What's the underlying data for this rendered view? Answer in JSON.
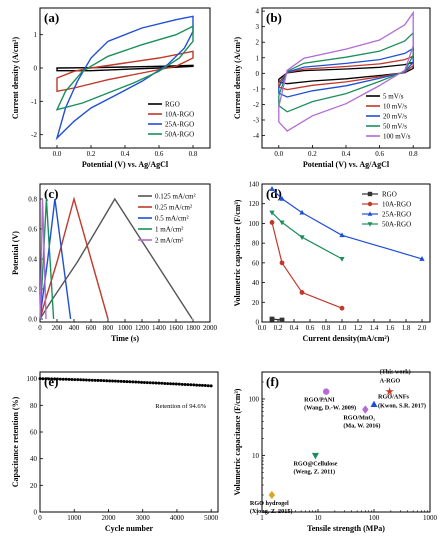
{
  "chart_data": [
    {
      "panel": "(a)",
      "type": "line",
      "xlabel": "Potential (V) vs. Ag/AgCl",
      "ylabel": "Current density (A/cm³)",
      "xlim": [
        -0.1,
        0.9
      ],
      "ylim": [
        -2.4,
        1.8
      ],
      "xticks": [
        "0.0",
        "0.2",
        "0.4",
        "0.6",
        "0.8"
      ],
      "yticks": [
        "-2",
        "-1",
        "0",
        "1"
      ],
      "legend_position": "bottom-right",
      "series": [
        {
          "name": "RGO",
          "color": "#000000",
          "loop": {
            "upper": [
              [
                0,
                0.0
              ],
              [
                0.2,
                0.01
              ],
              [
                0.4,
                0.03
              ],
              [
                0.6,
                0.05
              ],
              [
                0.8,
                0.08
              ]
            ],
            "lower": [
              [
                0.8,
                0.05
              ],
              [
                0.6,
                0.0
              ],
              [
                0.4,
                -0.04
              ],
              [
                0.2,
                -0.08
              ],
              [
                0,
                -0.08
              ]
            ]
          }
        },
        {
          "name": "10A-RGO",
          "color": "#c0392b",
          "loop": {
            "upper": [
              [
                0,
                -0.3
              ],
              [
                0.1,
                -0.1
              ],
              [
                0.2,
                0.0
              ],
              [
                0.4,
                0.15
              ],
              [
                0.6,
                0.3
              ],
              [
                0.8,
                0.5
              ]
            ],
            "lower": [
              [
                0.8,
                0.3
              ],
              [
                0.7,
                0.05
              ],
              [
                0.5,
                -0.15
              ],
              [
                0.3,
                -0.35
              ],
              [
                0.1,
                -0.6
              ],
              [
                0,
                -0.7
              ]
            ]
          }
        },
        {
          "name": "25A-RGO",
          "color": "#1f4fd6",
          "loop": {
            "upper": [
              [
                0,
                -2.1
              ],
              [
                0.05,
                -1.2
              ],
              [
                0.12,
                -0.4
              ],
              [
                0.2,
                0.3
              ],
              [
                0.3,
                0.8
              ],
              [
                0.5,
                1.2
              ],
              [
                0.7,
                1.45
              ],
              [
                0.8,
                1.55
              ]
            ],
            "lower": [
              [
                0.8,
                1.1
              ],
              [
                0.75,
                0.6
              ],
              [
                0.65,
                0.1
              ],
              [
                0.5,
                -0.4
              ],
              [
                0.35,
                -0.8
              ],
              [
                0.2,
                -1.2
              ],
              [
                0.1,
                -1.6
              ],
              [
                0,
                -2.1
              ]
            ]
          }
        },
        {
          "name": "50A-RGO",
          "color": "#1b8f5a",
          "loop": {
            "upper": [
              [
                0,
                -1.25
              ],
              [
                0.05,
                -0.7
              ],
              [
                0.15,
                -0.1
              ],
              [
                0.3,
                0.35
              ],
              [
                0.5,
                0.7
              ],
              [
                0.7,
                1.0
              ],
              [
                0.8,
                1.25
              ]
            ],
            "lower": [
              [
                0.8,
                0.8
              ],
              [
                0.72,
                0.3
              ],
              [
                0.6,
                -0.1
              ],
              [
                0.45,
                -0.45
              ],
              [
                0.3,
                -0.75
              ],
              [
                0.15,
                -1.05
              ],
              [
                0,
                -1.25
              ]
            ]
          }
        }
      ]
    },
    {
      "panel": "(b)",
      "type": "line",
      "xlabel": "Potential (V) vs. Ag/AgCl",
      "ylabel": "Current density (A/cm³)",
      "xlim": [
        -0.1,
        0.9
      ],
      "ylim": [
        -4.8,
        4.2
      ],
      "xticks": [
        "0.0",
        "0.2",
        "0.4",
        "0.6",
        "0.8"
      ],
      "yticks": [
        "-4",
        "-3",
        "-2",
        "-1",
        "0",
        "1",
        "2",
        "3",
        "4"
      ],
      "legend_position": "bottom-right",
      "series": [
        {
          "name": "5 mV/s",
          "color": "#000000",
          "amplitude": 0.7
        },
        {
          "name": "10 mV/s",
          "color": "#c0392b",
          "amplitude": 1.1
        },
        {
          "name": "20 mV/s",
          "color": "#1f4fd6",
          "amplitude": 1.6
        },
        {
          "name": "50 mV/s",
          "color": "#1b8f5a",
          "amplitude": 2.6
        },
        {
          "name": "100 mV/s",
          "color": "#b36ad6",
          "amplitude": 3.9
        }
      ]
    },
    {
      "panel": "(c)",
      "type": "line",
      "xlabel": "Time (s)",
      "ylabel": "Potential (V)",
      "xlim": [
        0,
        2000
      ],
      "ylim": [
        -0.02,
        0.9
      ],
      "xticks": [
        "0",
        "200",
        "400",
        "600",
        "800",
        "1000",
        "1200",
        "1400",
        "1600",
        "1800",
        "2000"
      ],
      "yticks": [
        "0.0",
        "0.2",
        "0.4",
        "0.6",
        "0.8"
      ],
      "legend_position": "top-right",
      "series": [
        {
          "name": "0.125 mA/cm²",
          "color": "#555555",
          "peak_time": 880,
          "end_time": 1790
        },
        {
          "name": "0.25 mA/cm²",
          "color": "#c0392b",
          "peak_time": 400,
          "end_time": 800
        },
        {
          "name": "0.5 mA/cm²",
          "color": "#1f4fd6",
          "peak_time": 175,
          "end_time": 360
        },
        {
          "name": "1 mA/cm²",
          "color": "#1b8f5a",
          "peak_time": 75,
          "end_time": 160
        },
        {
          "name": "2 mA/cm²",
          "color": "#b36ad6",
          "peak_time": 30,
          "end_time": 70
        }
      ]
    },
    {
      "panel": "(d)",
      "type": "line",
      "xlabel": "Current density(mA/cm²)",
      "ylabel": "Volumetric capacitance (F/cm³)",
      "xlim": [
        0.0,
        2.1
      ],
      "ylim": [
        0,
        140
      ],
      "xticks": [
        "0.0",
        "0.2",
        "0.4",
        "0.6",
        "0.8",
        "1.0",
        "1.2",
        "1.4",
        "1.6",
        "1.8",
        "2.0"
      ],
      "yticks": [
        "0",
        "20",
        "40",
        "60",
        "80",
        "100",
        "120",
        "140"
      ],
      "legend_position": "top-right",
      "series": [
        {
          "name": "RGO",
          "color": "#333333",
          "marker": "square",
          "x": [
            0.125,
            0.25
          ],
          "y": [
            3,
            2
          ]
        },
        {
          "name": "10A-RGO",
          "color": "#c0392b",
          "marker": "circle",
          "x": [
            0.125,
            0.25,
            0.5,
            1.0
          ],
          "y": [
            101,
            60,
            30,
            14
          ]
        },
        {
          "name": "25A-RGO",
          "color": "#1f4fd6",
          "marker": "triangle-up",
          "x": [
            0.125,
            0.25,
            0.5,
            1.0,
            2.0
          ],
          "y": [
            135,
            125,
            111,
            88,
            64
          ]
        },
        {
          "name": "50A-RGO",
          "color": "#1b8f5a",
          "marker": "triangle-down",
          "x": [
            0.125,
            0.25,
            0.5,
            1.0
          ],
          "y": [
            111,
            101,
            86,
            64
          ]
        }
      ]
    },
    {
      "panel": "(e)",
      "type": "scatter",
      "xlabel": "Cycle number",
      "ylabel": "Capacitance retention (%)",
      "xlim": [
        0,
        5200
      ],
      "ylim": [
        0,
        105
      ],
      "xticks": [
        "0",
        "1000",
        "2000",
        "3000",
        "4000",
        "5000"
      ],
      "yticks": [
        "0",
        "20",
        "40",
        "60",
        "80",
        "100"
      ],
      "annotation": "Retention of 94.6%",
      "series": [
        {
          "x_start": 0,
          "x_end": 5000,
          "y_start": 100,
          "y_end": 94.6,
          "n_points": 60
        }
      ]
    },
    {
      "panel": "(f)",
      "type": "scatter",
      "xlabel": "Tensile strength (MPa)",
      "ylabel": "Volumetric capacitance (F/cm³)",
      "x_scale": "log",
      "y_scale": "log",
      "xlim": [
        1,
        1000
      ],
      "ylim": [
        1,
        300
      ],
      "xticks": [
        "1",
        "10",
        "100",
        "1000"
      ],
      "yticks": [
        "1",
        "10",
        "100"
      ],
      "points": [
        {
          "label": "(This work)",
          "label2": "A-RGO",
          "x": 190,
          "y": 135,
          "color": "#c0392b",
          "marker": "star"
        },
        {
          "label": "RGO/ANFs",
          "label2": "(Kwon, S.R. 2017)",
          "x": 100,
          "y": 80,
          "color": "#1f4fd6",
          "marker": "triangle-up"
        },
        {
          "label": "RGO/MnO₂",
          "label2": "(Ma, W. 2016)",
          "x": 70,
          "y": 65,
          "color": "#b36ad6",
          "marker": "diamond"
        },
        {
          "label": "RGO/PANI",
          "label2": "(Wang, D.-W. 2009)",
          "x": 14,
          "y": 135,
          "color": "#b36ad6",
          "marker": "circle"
        },
        {
          "label": "RGO@Cellulose",
          "label2": "(Weng, Z. 2011)",
          "x": 9,
          "y": 10,
          "color": "#1b8f5a",
          "marker": "triangle-down"
        },
        {
          "label": "RGO hydrogel",
          "label2": "(Xiong, Z. 2015)",
          "x": 1.5,
          "y": 2,
          "color": "#d9a820",
          "marker": "diamond"
        }
      ]
    }
  ]
}
